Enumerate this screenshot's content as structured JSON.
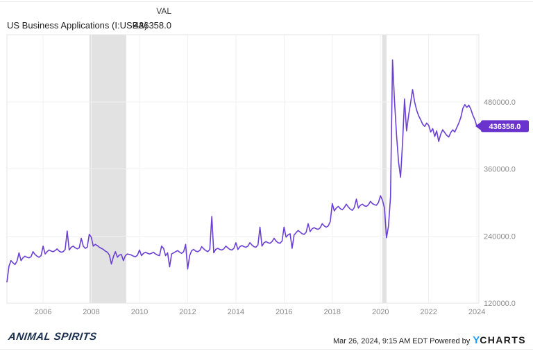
{
  "header": {
    "column_label": "VAL",
    "series_name": "US Business Applications (I:USBA)",
    "latest_value": "436358.0"
  },
  "footer": {
    "logo_text": "ANIMAL SPIRITS",
    "timestamp": "Mar 26, 2024, 9:15 AM EDT",
    "powered_by": "Powered by",
    "brand_y": "Y",
    "brand_rest": "CHARTS"
  },
  "chart_data": {
    "type": "line",
    "title": "US Business Applications (I:USBA)",
    "legend_position": "none",
    "grid": true,
    "line_color": "#6B3FD6",
    "badge_color": "#6A33CE",
    "band_color": "#e2e2e2",
    "grid_color": "#f1f1f1",
    "border_color": "#e6e6e6",
    "tick_color": "#8a8a8a",
    "x_range": [
      2004.5,
      2024.083
    ],
    "y_range": [
      120000,
      600000
    ],
    "x_ticks": [
      2006,
      2008,
      2010,
      2012,
      2014,
      2016,
      2018,
      2020,
      2022,
      2024
    ],
    "x_tick_labels": [
      "2006",
      "2008",
      "2010",
      "2012",
      "2014",
      "2016",
      "2018",
      "2020",
      "2022",
      "2024"
    ],
    "y_ticks": [
      120000,
      240000,
      360000,
      480000
    ],
    "y_tick_labels": [
      "120000.0",
      "240000.0",
      "360000.0",
      "480000.0"
    ],
    "recession_bands": [
      [
        2007.92,
        2009.45
      ],
      [
        2020.07,
        2020.25
      ]
    ],
    "last_value_label": "436358.0",
    "x_start": 2004.5,
    "x_step_years": 0.0833333,
    "values": [
      158000,
      186000,
      196000,
      192000,
      189000,
      195000,
      210000,
      196000,
      201000,
      204000,
      202000,
      201000,
      203000,
      212000,
      207000,
      204000,
      202000,
      205000,
      222000,
      208000,
      212000,
      215000,
      213000,
      212000,
      214000,
      217000,
      213000,
      211000,
      212000,
      216000,
      249000,
      215000,
      220000,
      222000,
      219000,
      217000,
      219000,
      236000,
      222000,
      218000,
      220000,
      243000,
      238000,
      222000,
      225000,
      223000,
      220000,
      218000,
      216000,
      213000,
      211000,
      206000,
      190000,
      203000,
      212000,
      202000,
      206000,
      207000,
      196000,
      205000,
      208000,
      207000,
      206000,
      204000,
      203000,
      206000,
      215000,
      205000,
      209000,
      211000,
      209000,
      208000,
      209000,
      211000,
      208000,
      206000,
      205000,
      222000,
      218000,
      205000,
      210000,
      185000,
      208000,
      210000,
      212000,
      214000,
      211000,
      209000,
      212000,
      225000,
      181000,
      205000,
      214000,
      216000,
      213000,
      212000,
      214000,
      221000,
      217000,
      214000,
      212000,
      216000,
      275000,
      210000,
      216000,
      218000,
      216000,
      215000,
      217000,
      222000,
      219000,
      216000,
      215000,
      218000,
      228000,
      216000,
      221000,
      223000,
      221000,
      220000,
      222000,
      228000,
      224000,
      221000,
      220000,
      224000,
      256000,
      222000,
      228000,
      230000,
      228000,
      227000,
      230000,
      236000,
      231000,
      228000,
      227000,
      231000,
      256000,
      238000,
      242000,
      244000,
      218000,
      242000,
      246000,
      250000,
      247000,
      244000,
      243000,
      247000,
      262000,
      248000,
      253000,
      255000,
      253000,
      252000,
      255000,
      262000,
      258000,
      256000,
      258000,
      266000,
      298000,
      285000,
      290000,
      293000,
      289000,
      287000,
      291000,
      297000,
      292000,
      288000,
      286000,
      291000,
      306000,
      290000,
      295000,
      297000,
      294000,
      293000,
      296000,
      302000,
      298000,
      296000,
      295000,
      300000,
      312000,
      304000,
      290000,
      237000,
      258000,
      310000,
      555000,
      480000,
      420000,
      372000,
      345000,
      408000,
      485000,
      428000,
      455000,
      478000,
      502000,
      480000,
      465000,
      455000,
      448000,
      440000,
      436000,
      442000,
      438000,
      426000,
      432000,
      418000,
      428000,
      409000,
      422000,
      430000,
      425000,
      420000,
      417000,
      425000,
      430000,
      426000,
      434000,
      442000,
      452000,
      468000,
      475000,
      470000,
      474000,
      467000,
      456000,
      448000,
      436358
    ]
  }
}
